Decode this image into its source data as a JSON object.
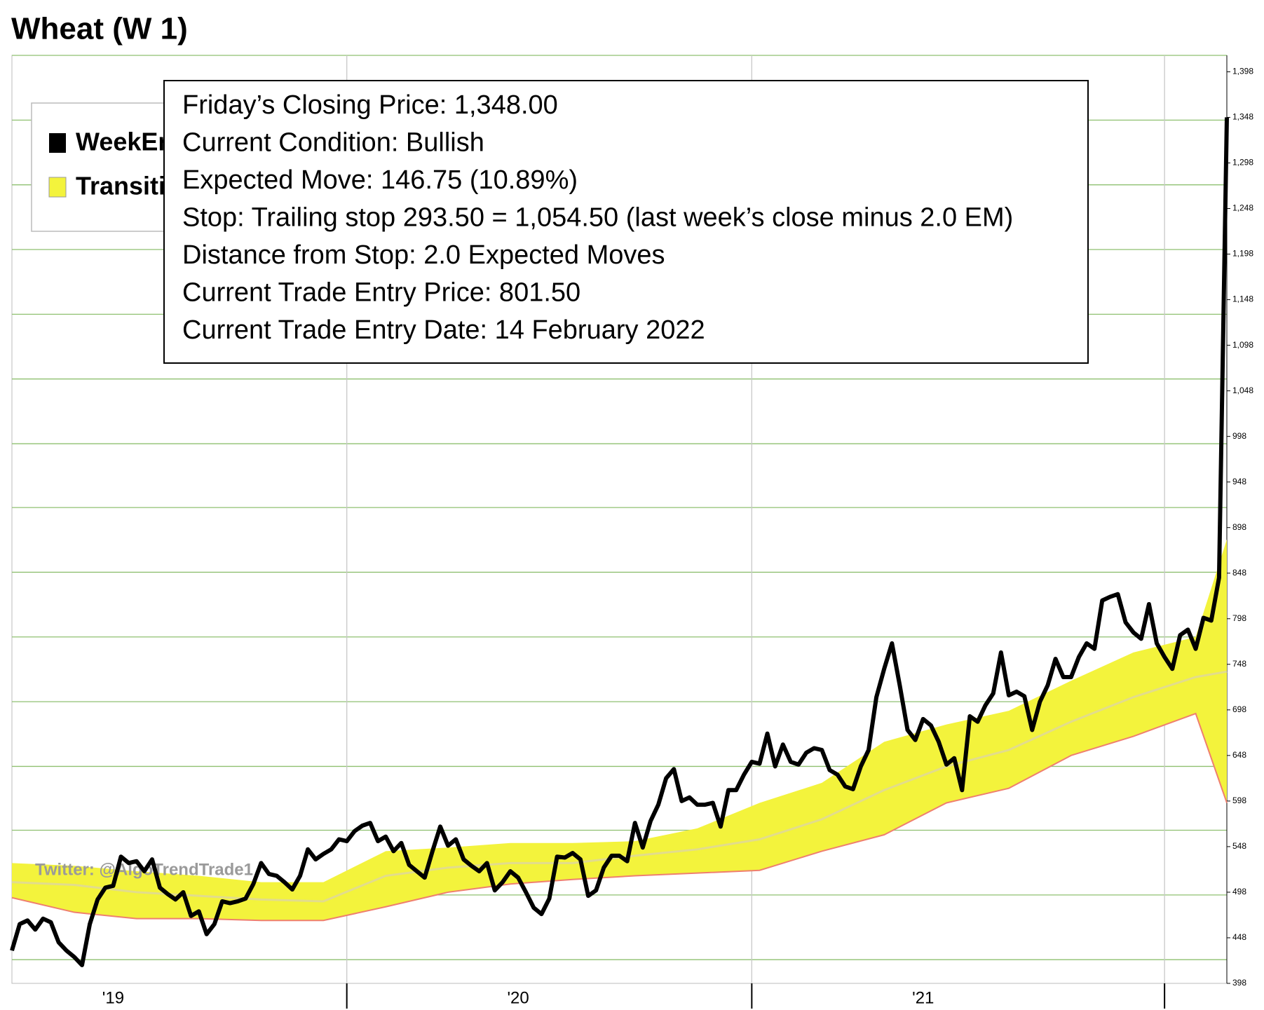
{
  "chart_data": {
    "type": "line",
    "title": "Wheat (W 1)",
    "watermark": "Twitter: @AlgoTrendTrade1",
    "annotations": [
      "Friday’s Closing Price: 1,348.00",
      "Current Condition: Bullish",
      "Expected Move: 146.75 (10.89%)",
      "Stop: Trailing stop 293.50 = 1,054.50 (last week’s close minus 2.0 EM)",
      "Distance from Stop: 2.0 Expected Moves",
      "Current Trade Entry Price: 801.50",
      "Current Trade Entry Date: 14 February 2022"
    ],
    "categories": [
      null,
      null,
      null,
      null,
      null,
      null,
      null,
      null,
      null,
      null,
      null,
      null,
      null,
      "'19",
      null,
      null,
      null,
      null,
      null,
      null,
      null,
      null,
      null,
      null,
      null,
      null,
      null,
      null,
      null,
      null,
      null,
      null,
      null,
      null,
      null,
      null,
      null,
      null,
      null,
      null,
      null,
      null,
      null,
      null,
      null,
      null,
      null,
      null,
      null,
      null,
      null,
      null,
      null,
      null,
      null,
      null,
      null,
      null,
      null,
      null,
      null,
      null,
      null,
      null,
      null,
      "'20",
      null,
      null,
      null,
      null,
      null,
      null,
      null,
      null,
      null,
      null,
      null,
      null,
      null,
      null,
      null,
      null,
      null,
      null,
      null,
      null,
      null,
      null,
      null,
      null,
      null,
      null,
      null,
      null,
      null,
      null,
      null,
      null,
      null,
      null,
      null,
      null,
      null,
      null,
      null,
      null,
      null,
      null,
      null,
      null,
      null,
      null,
      null,
      null,
      null,
      null,
      null,
      "'21",
      null,
      null,
      null,
      null,
      null,
      null,
      null,
      null,
      null,
      null,
      null,
      null,
      null,
      null,
      null,
      null,
      null,
      null,
      null,
      null,
      null,
      null,
      null,
      null,
      null,
      null,
      null,
      null,
      null,
      null,
      null,
      null,
      null,
      null,
      null,
      null,
      null,
      null,
      null
    ],
    "series": [
      {
        "name": "WeekEnd",
        "color": "#000000",
        "values": [
          434,
          463,
          467,
          457,
          469,
          465,
          443,
          434,
          427,
          418,
          463,
          490,
          503,
          505,
          537,
          530,
          532,
          521,
          534,
          503,
          496,
          490,
          498,
          472,
          477,
          452,
          463,
          488,
          486,
          488,
          491,
          507,
          530,
          518,
          516,
          509,
          501,
          516,
          545,
          534,
          540,
          545,
          556,
          554,
          565,
          571,
          574,
          554,
          559,
          543,
          552,
          528,
          521,
          514,
          543,
          570,
          549,
          556,
          534,
          527,
          521,
          530,
          500,
          509,
          521,
          514,
          498,
          481,
          474,
          491,
          537,
          536,
          541,
          534,
          494,
          500,
          525,
          538,
          538,
          532,
          574,
          547,
          576,
          594,
          623,
          633,
          598,
          602,
          594,
          594,
          596,
          570,
          610,
          610,
          627,
          641,
          639,
          672,
          636,
          660,
          641,
          638,
          651,
          656,
          654,
          632,
          627,
          614,
          611,
          636,
          654,
          712,
          743,
          771,
          725,
          676,
          665,
          688,
          681,
          663,
          638,
          645,
          610,
          691,
          685,
          703,
          716,
          761,
          714,
          718,
          713,
          676,
          707,
          725,
          754,
          734,
          734,
          756,
          771,
          765,
          818,
          822,
          825,
          794,
          783,
          776,
          814,
          771,
          756,
          743,
          780,
          786,
          765,
          799,
          796,
          843,
          1348
        ]
      }
    ],
    "band": {
      "name": "Transition",
      "color": "#f3f33c",
      "mid_color": "#e2dc8c",
      "lower_color": "#ef7f6f",
      "x": [
        0,
        8,
        16,
        24,
        32,
        40,
        48,
        56,
        64,
        72,
        80,
        88,
        96,
        104,
        112,
        120,
        128,
        136,
        144,
        152,
        156
      ],
      "upper": [
        530,
        527,
        521,
        516,
        509,
        509,
        543,
        547,
        552,
        552,
        554,
        568,
        596,
        618,
        663,
        682,
        697,
        730,
        761,
        778,
        885
      ],
      "mid": [
        509,
        506,
        498,
        494,
        490,
        488,
        516,
        525,
        530,
        530,
        538,
        545,
        556,
        578,
        610,
        636,
        654,
        685,
        712,
        734,
        740
      ],
      "lower": [
        492,
        476,
        469,
        469,
        467,
        467,
        482,
        498,
        507,
        512,
        516,
        519,
        522,
        543,
        561,
        596,
        612,
        648,
        669,
        694,
        596
      ]
    },
    "ylim": [
      398,
      1416
    ],
    "yticks": [
      398,
      448,
      498,
      548,
      598,
      648,
      698,
      748,
      798,
      848,
      898,
      948,
      998,
      {
        "value": 1048,
        "label": "1,048"
      },
      {
        "value": 1098,
        "label": "1,098"
      },
      {
        "value": 1148,
        "label": "1,148"
      },
      {
        "value": 1198,
        "label": "1,198"
      },
      {
        "value": 1248,
        "label": "1,248"
      },
      {
        "value": 1298,
        "label": "1,298"
      },
      {
        "value": 1348,
        "label": "1,348"
      },
      {
        "value": 1398,
        "label": "1,398"
      }
    ],
    "ygrid": [
      424,
      495,
      566,
      636,
      707,
      778,
      849,
      920,
      990,
      1061,
      1132,
      1203,
      1274,
      1345,
      1416
    ],
    "xgrid": [
      43,
      95,
      148
    ],
    "grid_color": "#8fc070"
  }
}
